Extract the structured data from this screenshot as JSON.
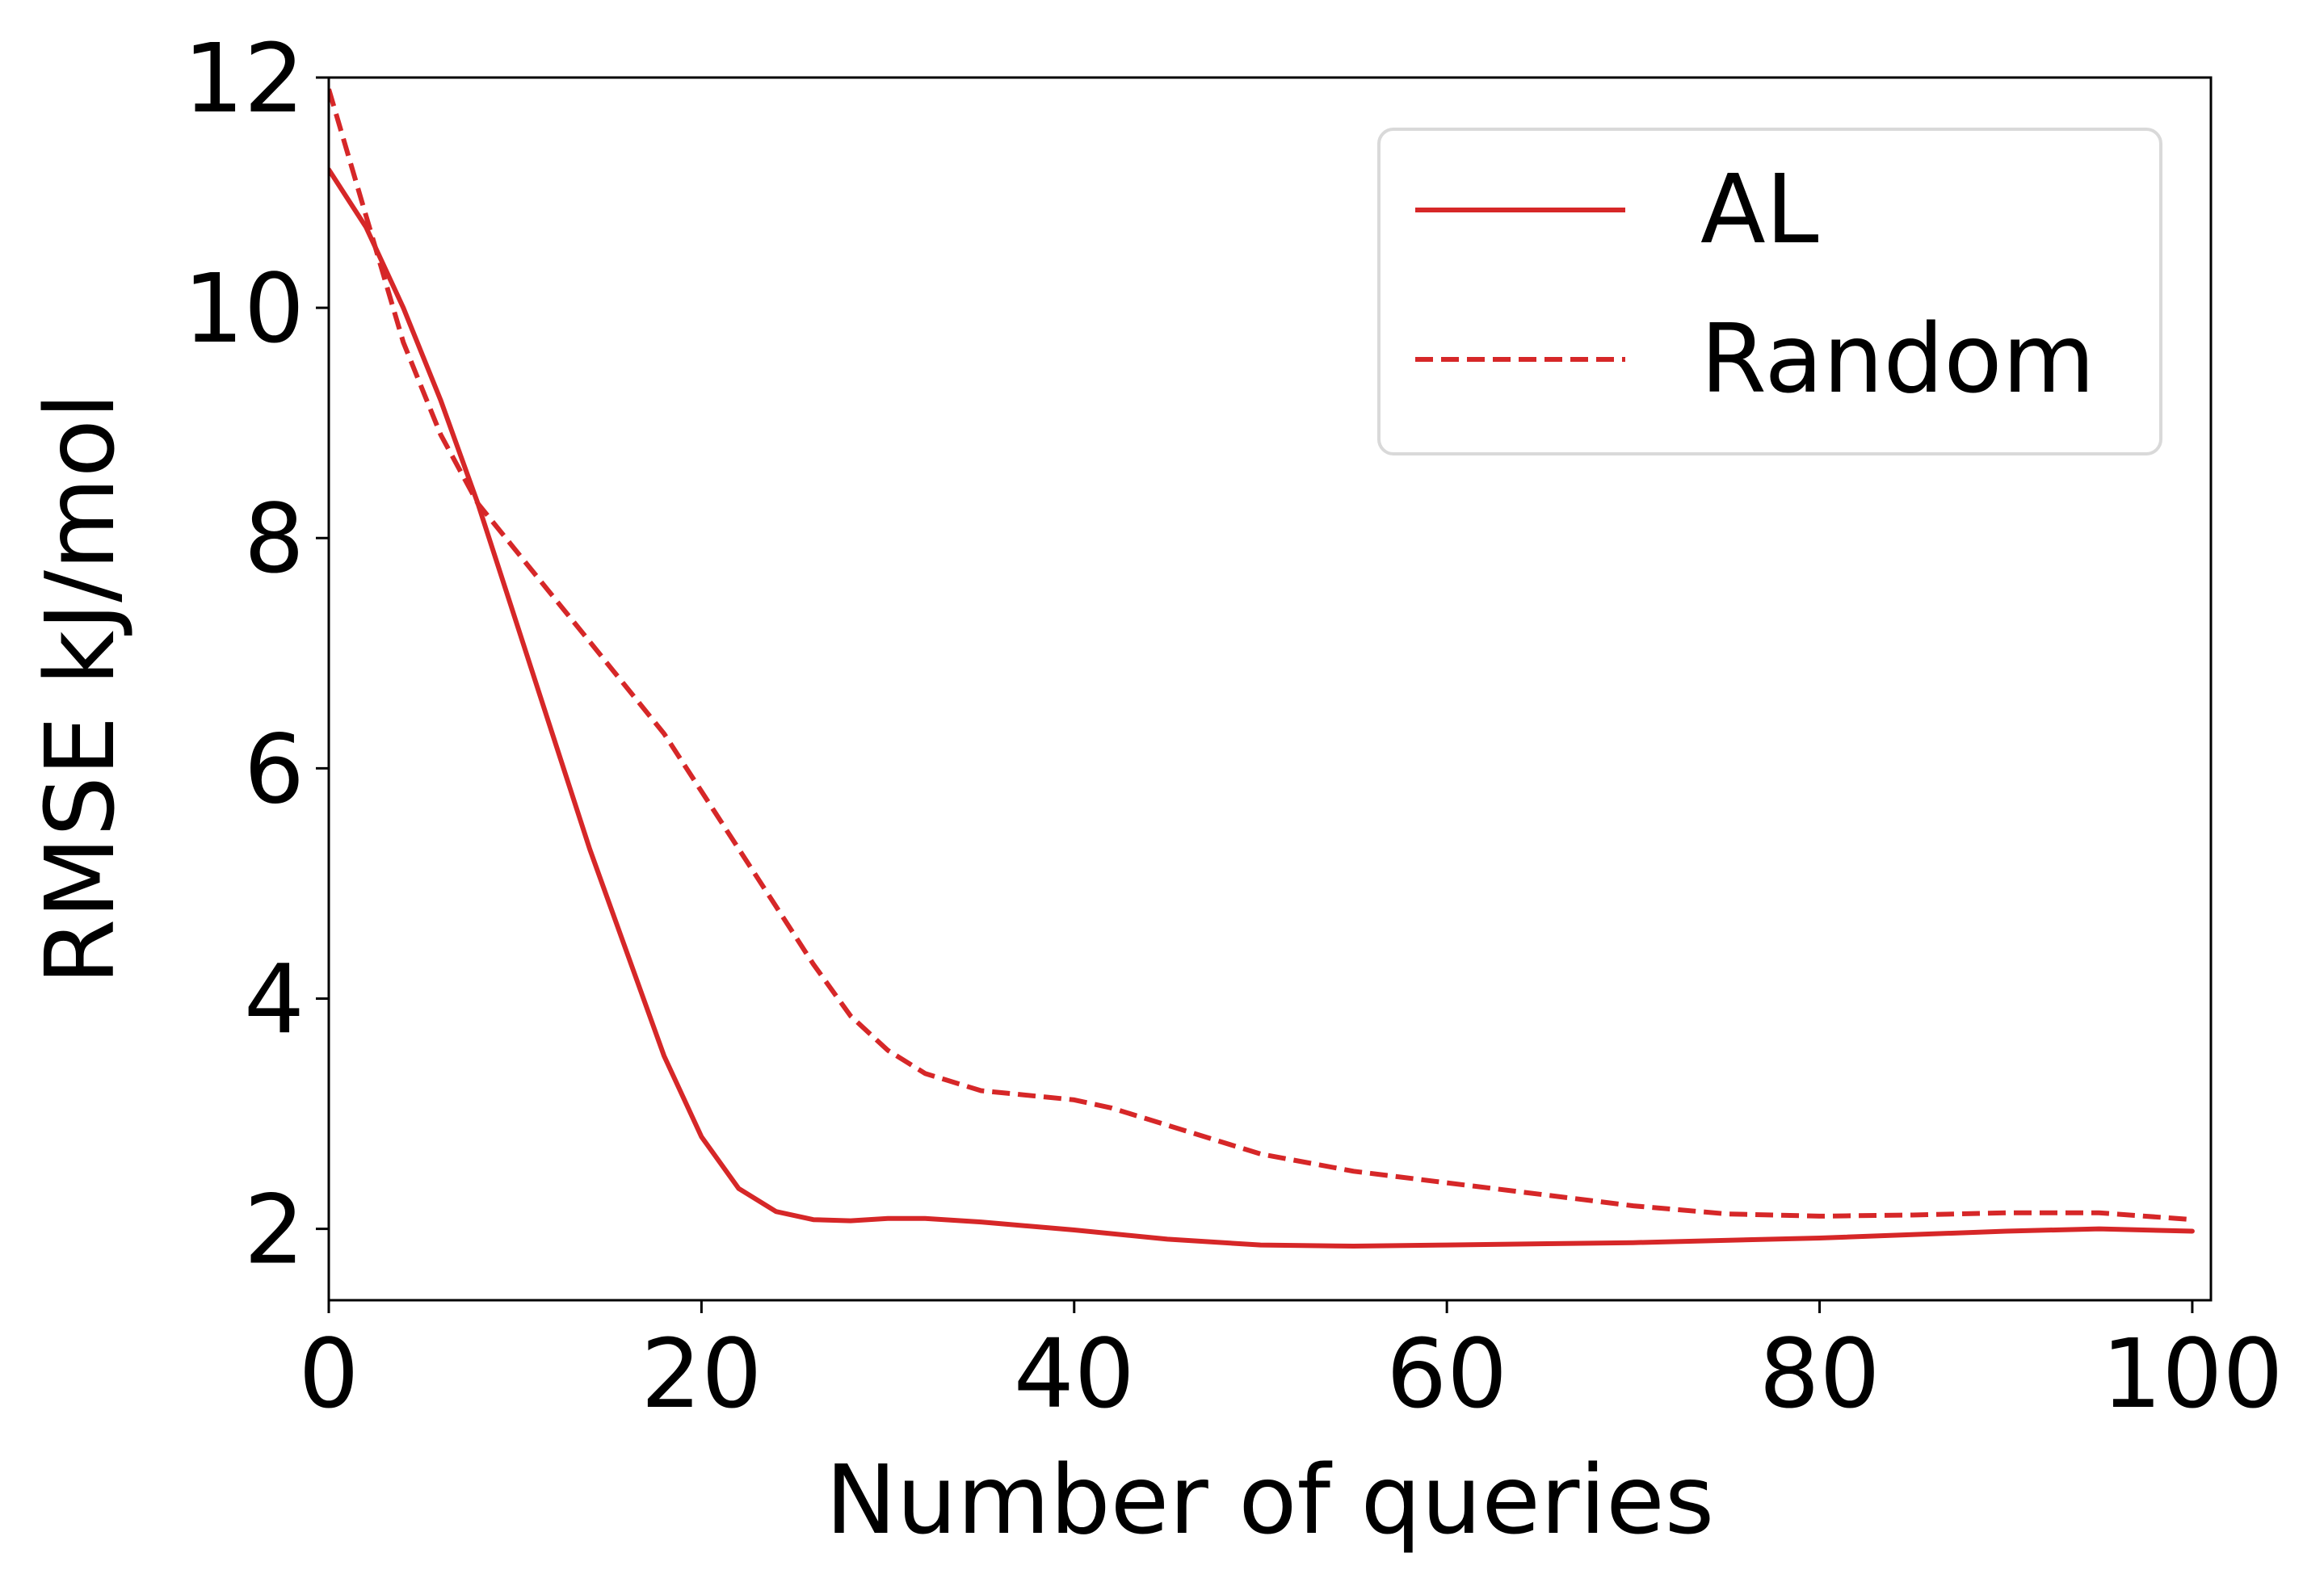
{
  "chart_data": {
    "type": "line",
    "title": "",
    "xlabel": "Number of queries",
    "ylabel": "RMSE kJ/mol",
    "xlim": [
      0,
      101
    ],
    "ylim": [
      1.38,
      12
    ],
    "xticks": [
      0,
      20,
      40,
      60,
      80,
      100
    ],
    "yticks": [
      2,
      4,
      6,
      8,
      10,
      12
    ],
    "grid": false,
    "legend_position": "top-right",
    "series": [
      {
        "name": "AL",
        "style": "solid",
        "color": "#d62728",
        "x": [
          0,
          2,
          4,
          6,
          8,
          10,
          12,
          14,
          16,
          18,
          20,
          22,
          24,
          26,
          28,
          30,
          32,
          35,
          40,
          45,
          50,
          55,
          60,
          70,
          80,
          90,
          95,
          100
        ],
        "y": [
          11.2,
          10.7,
          10.0,
          9.2,
          8.3,
          7.3,
          6.3,
          5.3,
          4.4,
          3.5,
          2.8,
          2.35,
          2.15,
          2.08,
          2.07,
          2.09,
          2.09,
          2.06,
          1.99,
          1.91,
          1.86,
          1.85,
          1.86,
          1.88,
          1.92,
          1.98,
          2.0,
          1.98
        ]
      },
      {
        "name": "Random",
        "style": "dashed",
        "color": "#d62728",
        "x": [
          0,
          2,
          4,
          6,
          8,
          10,
          12,
          14,
          16,
          18,
          20,
          22,
          24,
          26,
          28,
          30,
          32,
          35,
          40,
          42,
          45,
          50,
          55,
          60,
          65,
          70,
          75,
          80,
          85,
          90,
          95,
          100
        ],
        "y": [
          11.9,
          10.8,
          9.7,
          8.9,
          8.3,
          7.9,
          7.5,
          7.1,
          6.7,
          6.3,
          5.8,
          5.3,
          4.8,
          4.3,
          3.85,
          3.55,
          3.35,
          3.2,
          3.12,
          3.05,
          2.9,
          2.65,
          2.5,
          2.4,
          2.3,
          2.2,
          2.13,
          2.11,
          2.12,
          2.14,
          2.14,
          2.08
        ]
      }
    ]
  }
}
